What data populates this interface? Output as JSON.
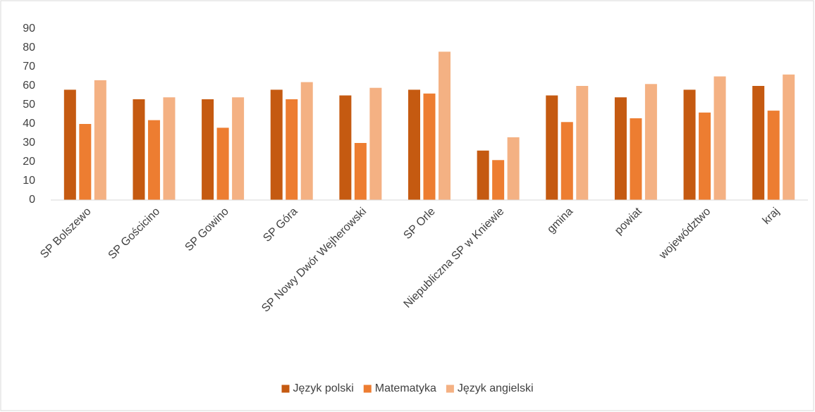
{
  "chart_data": {
    "type": "bar",
    "categories": [
      "SP Bolszewo",
      "SP Gościcino",
      "SP Gowino",
      "SP Góra",
      "SP Nowy Dwór Wejherowski",
      "SP Orle",
      "Niepubliczna SP w Kniewie",
      "gmina",
      "powiat",
      "województwo",
      "kraj"
    ],
    "series": [
      {
        "name": "Język polski",
        "color": "#c55a11",
        "values": [
          58,
          53,
          53,
          58,
          55,
          58,
          26,
          55,
          54,
          58,
          60
        ]
      },
      {
        "name": "Matematyka",
        "color": "#ed7d31",
        "values": [
          40,
          42,
          38,
          53,
          30,
          56,
          21,
          41,
          43,
          46,
          47
        ]
      },
      {
        "name": "Język angielski",
        "color": "#f4b183",
        "values": [
          63,
          54,
          54,
          62,
          59,
          78,
          33,
          60,
          61,
          65,
          66
        ]
      }
    ],
    "ylim": [
      0,
      90
    ],
    "yticks": [
      0,
      10,
      20,
      30,
      40,
      50,
      60,
      70,
      80,
      90
    ],
    "grid": false,
    "legend": "bottom"
  }
}
